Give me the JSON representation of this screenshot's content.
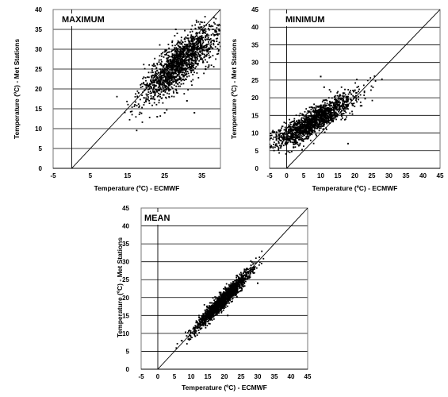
{
  "chart_data": [
    {
      "type": "scatter",
      "panel_label": "MAXIMUM",
      "xlabel": "Temperature (ºC) - ECMWF",
      "ylabel": "Temperature (ºC) - Met Stations",
      "xlim": [
        -5,
        40
      ],
      "ylim": [
        0,
        40
      ],
      "xticks": [
        "-5",
        "5",
        "15",
        "25",
        "35"
      ],
      "xtick_values": [
        -5,
        5,
        15,
        25,
        35
      ],
      "yticks": [
        "0",
        "5",
        "10",
        "15",
        "20",
        "25",
        "30",
        "35",
        "40"
      ],
      "ytick_values": [
        0,
        5,
        10,
        15,
        20,
        25,
        30,
        35,
        40
      ],
      "grid": "horizontal",
      "reference_line": "1:1",
      "point_cloud": {
        "approx_count": 1600,
        "trend_x": [
          19,
          24,
          28,
          32,
          36,
          39
        ],
        "trend_y": [
          18.5,
          22.5,
          26,
          29,
          31.5,
          33
        ],
        "x_spread": 3.6,
        "y_spread": 2.8
      },
      "points": [
        [
          17,
          16
        ],
        [
          18,
          19
        ],
        [
          20,
          21
        ],
        [
          22,
          18
        ],
        [
          23,
          13
        ],
        [
          25,
          14
        ],
        [
          25,
          22
        ],
        [
          27,
          24
        ],
        [
          29,
          25
        ],
        [
          30,
          28
        ],
        [
          31,
          17
        ],
        [
          33,
          14
        ],
        [
          33,
          30
        ],
        [
          35,
          31
        ],
        [
          36,
          33
        ],
        [
          38,
          35
        ],
        [
          39,
          32
        ],
        [
          40,
          36
        ],
        [
          36,
          25
        ],
        [
          28,
          35
        ]
      ]
    },
    {
      "type": "scatter",
      "panel_label": "MINIMUM",
      "xlabel": "Temperature (ºC) - ECMWF",
      "ylabel": "Temperature (ºC) - Met Stations",
      "xlim": [
        -5,
        45
      ],
      "ylim": [
        0,
        45
      ],
      "xticks": [
        "-5",
        "0",
        "5",
        "10",
        "15",
        "20",
        "25",
        "30",
        "35",
        "40",
        "45"
      ],
      "xtick_values": [
        -5,
        0,
        5,
        10,
        15,
        20,
        25,
        30,
        35,
        40,
        45
      ],
      "yticks": [
        "0",
        "5",
        "10",
        "15",
        "20",
        "25",
        "30",
        "35",
        "40",
        "45"
      ],
      "ytick_values": [
        0,
        5,
        10,
        15,
        20,
        25,
        30,
        35,
        40,
        45
      ],
      "grid": "horizontal",
      "reference_line": "1:1",
      "point_cloud": {
        "approx_count": 1600,
        "trend_x": [
          -4,
          0,
          4,
          8,
          12,
          16,
          20
        ],
        "trend_y": [
          7.5,
          9,
          11,
          13.5,
          15.5,
          18,
          20.5
        ],
        "x_spread": 2.8,
        "y_spread": 1.8
      },
      "points": [
        [
          -4,
          6
        ],
        [
          -3,
          8
        ],
        [
          0,
          9
        ],
        [
          2,
          6
        ],
        [
          4,
          11
        ],
        [
          6,
          12
        ],
        [
          8,
          14
        ],
        [
          10,
          15
        ],
        [
          10,
          26
        ],
        [
          11,
          23
        ],
        [
          13,
          17
        ],
        [
          15,
          18
        ],
        [
          17,
          19
        ],
        [
          18,
          7
        ],
        [
          19,
          21
        ],
        [
          20,
          22
        ]
      ]
    },
    {
      "type": "scatter",
      "panel_label": "MEAN",
      "xlabel": "Temperature (ºC) - ECMWF",
      "ylabel": "Temperature (ºC) - Met Stations",
      "xlim": [
        -5,
        45
      ],
      "ylim": [
        0,
        45
      ],
      "xticks": [
        "-5",
        "0",
        "5",
        "10",
        "15",
        "20",
        "25",
        "30",
        "35",
        "40",
        "45"
      ],
      "xtick_values": [
        -5,
        0,
        5,
        10,
        15,
        20,
        25,
        30,
        35,
        40,
        45
      ],
      "yticks": [
        "0",
        "5",
        "10",
        "15",
        "20",
        "25",
        "30",
        "35",
        "40",
        "45"
      ],
      "ytick_values": [
        0,
        5,
        10,
        15,
        20,
        25,
        30,
        35,
        40,
        45
      ],
      "grid": "horizontal",
      "reference_line": "1:1",
      "point_cloud": {
        "approx_count": 1500,
        "trend_x": [
          11,
          15,
          20,
          24,
          28
        ],
        "trend_y": [
          11,
          15,
          19.5,
          23.5,
          27.5
        ],
        "x_spread": 1.2,
        "y_spread": 1.1
      },
      "points": [
        [
          11,
          10.5
        ],
        [
          12,
          12
        ],
        [
          14,
          14
        ],
        [
          16,
          16
        ],
        [
          18,
          18
        ],
        [
          20,
          20
        ],
        [
          21,
          15
        ],
        [
          22,
          21
        ],
        [
          24,
          24
        ],
        [
          26,
          25
        ],
        [
          27,
          27
        ],
        [
          28,
          29
        ],
        [
          30,
          24
        ]
      ]
    }
  ]
}
